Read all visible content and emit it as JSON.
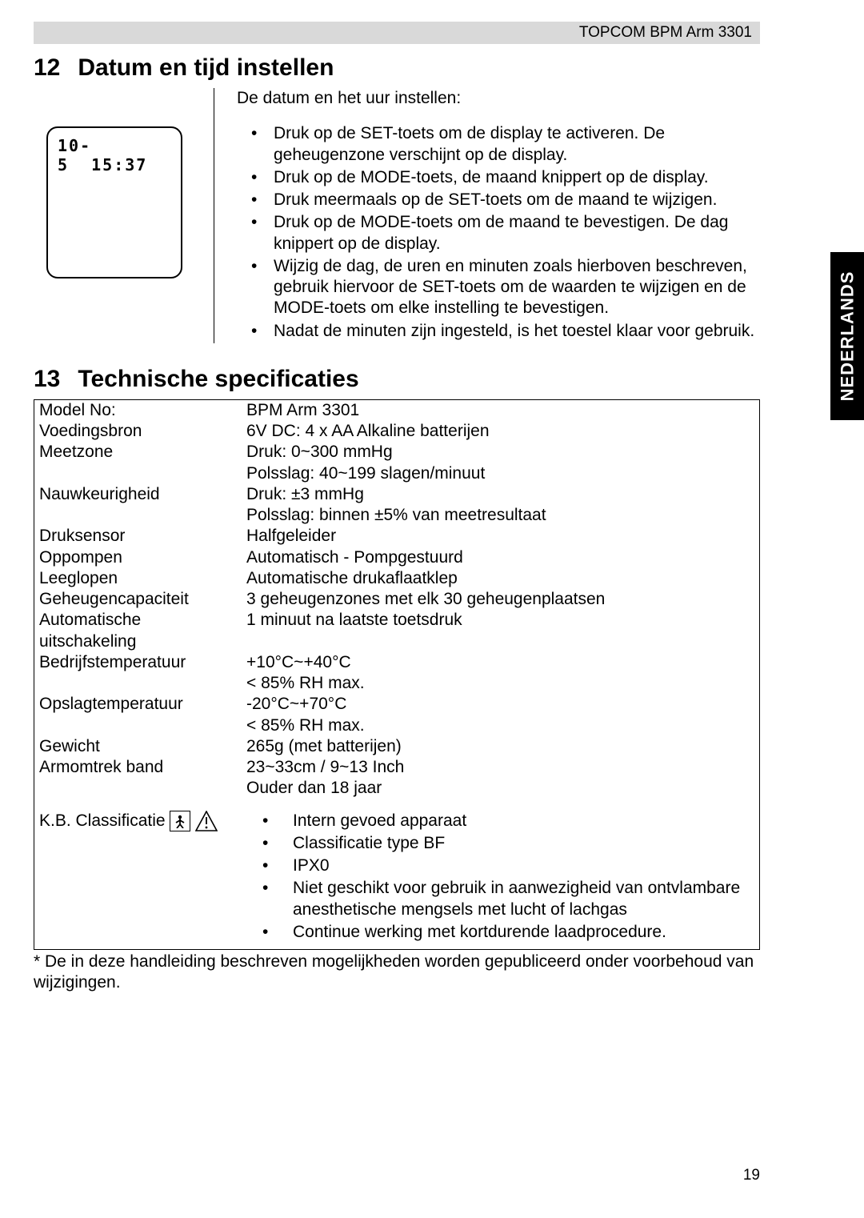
{
  "header": {
    "product": "TOPCOM BPM Arm 3301"
  },
  "langTab": "NEDERLANDS",
  "section12": {
    "number": "12",
    "title": "Datum en tijd instellen",
    "lcd_date": "10- 5",
    "lcd_time": "15:37",
    "intro": "De datum en het uur instellen:",
    "steps": [
      "Druk op de SET-toets om de display te activeren. De geheugenzone verschijnt op de display.",
      "Druk op de MODE-toets, de maand knippert op de display.",
      "Druk meermaals op de SET-toets om de maand te wijzigen.",
      "Druk op de MODE-toets om de maand te bevestigen. De dag knippert op de display.",
      "Wijzig de dag, de uren en minuten zoals hierboven beschreven, gebruik hiervoor de SET-toets om de waarden te wijzigen en de MODE-toets om elke instelling te bevestigen.",
      "Nadat de minuten zijn ingesteld, is het toestel klaar voor gebruik."
    ]
  },
  "section13": {
    "number": "13",
    "title": "Technische specificaties",
    "rows": [
      {
        "label": "Model No:",
        "lines": [
          "BPM Arm 3301"
        ]
      },
      {
        "label": "Voedingsbron",
        "lines": [
          "6V DC: 4 x AA Alkaline batterijen"
        ]
      },
      {
        "label": "Meetzone",
        "lines": [
          "Druk: 0~300 mmHg",
          "Polsslag: 40~199 slagen/minuut"
        ]
      },
      {
        "label": "Nauwkeurigheid",
        "lines": [
          "Druk: ±3 mmHg",
          "Polsslag: binnen ±5% van meetresultaat"
        ]
      },
      {
        "label": "Druksensor",
        "lines": [
          "Halfgeleider"
        ]
      },
      {
        "label": "Oppompen",
        "lines": [
          "Automatisch - Pompgestuurd"
        ]
      },
      {
        "label": "Leeglopen",
        "lines": [
          "Automatische drukaflaatklep"
        ]
      },
      {
        "label": "Geheugencapaciteit",
        "lines": [
          "3 geheugenzones met elk 30 geheugenplaatsen"
        ]
      },
      {
        "label": "Automatische uitschakeling",
        "lines": [
          "1 minuut na laatste toetsdruk"
        ]
      },
      {
        "label": "Bedrijfstemperatuur",
        "lines": [
          "+10°C~+40°C",
          "< 85% RH max."
        ]
      },
      {
        "label": "Opslagtemperatuur",
        "lines": [
          "-20°C~+70°C",
          "< 85% RH max."
        ]
      },
      {
        "label": "Gewicht",
        "lines": [
          "265g (met batterijen)"
        ]
      },
      {
        "label": "Armomtrek band",
        "lines": [
          "23~33cm / 9~13 Inch",
          "Ouder dan 18 jaar"
        ]
      }
    ],
    "kb": {
      "label": "K.B. Classificatie",
      "bullets": [
        "Intern gevoed apparaat",
        "Classificatie type BF",
        "IPX0",
        "Niet geschikt voor gebruik in aanwezigheid van ontvlambare anesthetische mengsels met lucht of lachgas",
        "Continue werking met kortdurende laadprocedure."
      ]
    }
  },
  "footnote": "* De in deze handleiding beschreven mogelijkheden worden gepubliceerd onder voorbehoud van wijzigingen.",
  "pageNumber": "19"
}
